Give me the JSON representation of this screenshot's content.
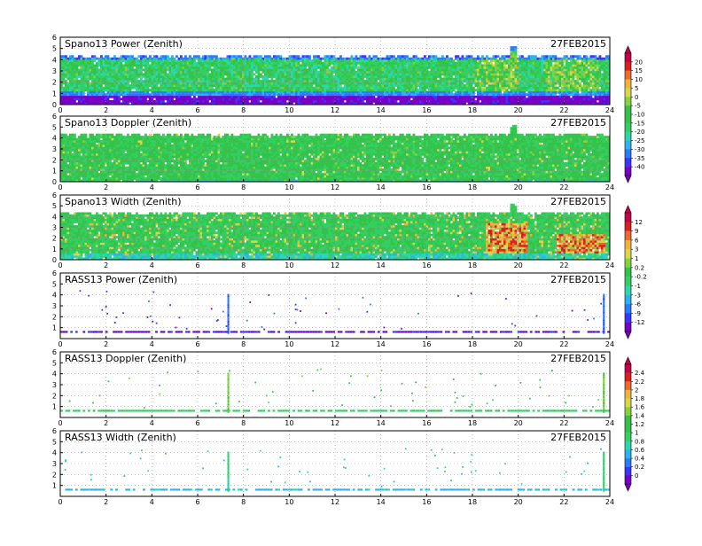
{
  "date_label": "27FEB2015",
  "x_ticks": [
    0,
    2,
    4,
    6,
    8,
    10,
    12,
    14,
    16,
    18,
    20,
    22,
    24
  ],
  "y_ticks": [
    0,
    1,
    2,
    3,
    4,
    5,
    6
  ],
  "chart_data": [
    {
      "type": "heatmap",
      "title": "Spano13 Power (Zenith)",
      "xlim": [
        0,
        24
      ],
      "ylim": [
        0,
        6
      ],
      "x_ticks": [
        0,
        2,
        4,
        6,
        8,
        10,
        12,
        14,
        16,
        18,
        20,
        22,
        24
      ],
      "y_ticks": [
        0,
        1,
        2,
        3,
        4,
        5,
        6
      ],
      "colorbar": {
        "id": "A",
        "labels": [
          "20",
          "15",
          "10",
          "5",
          "0",
          "-5",
          "-10",
          "-15",
          "-20",
          "-25",
          "-30",
          "-35",
          "-40"
        ]
      },
      "annotation": "27FEB2015",
      "grid": true
    },
    {
      "type": "heatmap",
      "title": "Spano13 Doppler (Zenith)",
      "xlim": [
        0,
        24
      ],
      "ylim": [
        0,
        6
      ],
      "x_ticks": [
        0,
        2,
        4,
        6,
        8,
        10,
        12,
        14,
        16,
        18,
        20,
        22,
        24
      ],
      "y_ticks": [
        0,
        1,
        2,
        3,
        4,
        5,
        6
      ],
      "colorbar": {
        "id": "A"
      },
      "annotation": "27FEB2015",
      "grid": true
    },
    {
      "type": "heatmap",
      "title": "Spano13 Width (Zenith)",
      "xlim": [
        0,
        24
      ],
      "ylim": [
        0,
        6
      ],
      "x_ticks": [
        0,
        2,
        4,
        6,
        8,
        10,
        12,
        14,
        16,
        18,
        20,
        22,
        24
      ],
      "y_ticks": [
        0,
        1,
        2,
        3,
        4,
        5,
        6
      ],
      "colorbar": {
        "id": "B",
        "labels": [
          "12",
          "9",
          "6",
          "3",
          "1",
          "0.2",
          "-0.2",
          "-1",
          "-3",
          "-6",
          "-9",
          "-12"
        ]
      },
      "annotation": "27FEB2015",
      "grid": true
    },
    {
      "type": "scatter",
      "title": "RASS13 Power (Zenith)",
      "xlim": [
        0,
        24
      ],
      "ylim": [
        0,
        6
      ],
      "x_ticks": [
        0,
        2,
        4,
        6,
        8,
        10,
        12,
        14,
        16,
        18,
        20,
        22,
        24
      ],
      "y_ticks": [
        1,
        2,
        3,
        4,
        5,
        6
      ],
      "colorbar": {
        "id": "B"
      },
      "annotation": "27FEB2015",
      "grid": true
    },
    {
      "type": "scatter",
      "title": "RASS13 Doppler (Zenith)",
      "xlim": [
        0,
        24
      ],
      "ylim": [
        0,
        6
      ],
      "x_ticks": [
        0,
        2,
        4,
        6,
        8,
        10,
        12,
        14,
        16,
        18,
        20,
        22,
        24
      ],
      "y_ticks": [
        1,
        2,
        3,
        4,
        5,
        6
      ],
      "colorbar": {
        "id": "C",
        "labels": [
          "2.4",
          "2.2",
          "2",
          "1.8",
          "1.6",
          "1.4",
          "1.2",
          "1",
          "0.8",
          "0.6",
          "0.4",
          "0.2",
          "0"
        ]
      },
      "annotation": "27FEB2015",
      "grid": true
    },
    {
      "type": "scatter",
      "title": "RASS13 Width (Zenith)",
      "xlim": [
        0,
        24
      ],
      "ylim": [
        0,
        6
      ],
      "x_ticks": [
        0,
        2,
        4,
        6,
        8,
        10,
        12,
        14,
        16,
        18,
        20,
        22,
        24
      ],
      "y_ticks": [
        1,
        2,
        3,
        4,
        5,
        6
      ],
      "colorbar": {
        "id": "C"
      },
      "annotation": "27FEB2015",
      "grid": true
    }
  ],
  "colors": {
    "ramp": [
      "#7a00c8",
      "#3a36ff",
      "#2a7cff",
      "#29b4f0",
      "#2ad8b0",
      "#32d060",
      "#34c34a",
      "#86d23a",
      "#d6d84a",
      "#f0b43a",
      "#ee6a2a",
      "#dc1e1e",
      "#c8004c"
    ],
    "axis": "#000000",
    "grid": "#9a9a9a"
  }
}
